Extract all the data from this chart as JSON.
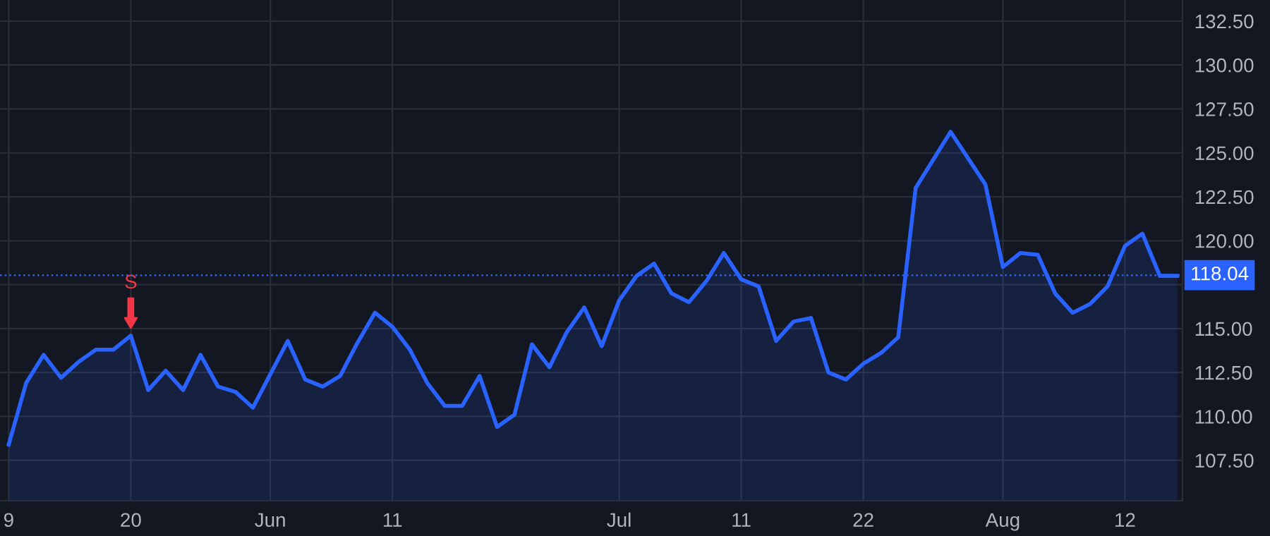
{
  "chart_data": {
    "type": "area",
    "categories": [
      "9",
      null,
      null,
      null,
      null,
      null,
      null,
      "20",
      null,
      null,
      null,
      null,
      null,
      null,
      null,
      "Jun",
      null,
      null,
      null,
      null,
      null,
      null,
      "11",
      null,
      null,
      null,
      null,
      null,
      null,
      null,
      null,
      null,
      null,
      null,
      null,
      "Jul",
      null,
      null,
      null,
      null,
      null,
      null,
      "11",
      null,
      null,
      null,
      null,
      null,
      null,
      "22",
      null,
      null,
      null,
      null,
      null,
      null,
      null,
      "Aug",
      null,
      null,
      null,
      null,
      null,
      null,
      "12",
      null,
      null,
      null
    ],
    "series": [
      {
        "color": "#2962ff",
        "values": [
          108.4,
          111.9,
          113.5,
          112.2,
          113.1,
          113.8,
          113.8,
          114.6,
          111.5,
          112.6,
          111.5,
          113.5,
          111.7,
          111.4,
          110.5,
          112.4,
          114.3,
          112.1,
          111.7,
          112.3,
          114.2,
          115.9,
          115.1,
          113.8,
          111.9,
          110.6,
          110.6,
          112.3,
          109.4,
          110.1,
          114.1,
          112.8,
          114.8,
          116.2,
          114.0,
          116.6,
          118.0,
          118.7,
          117.0,
          116.5,
          117.7,
          119.3,
          117.8,
          117.4,
          114.3,
          115.4,
          115.6,
          112.5,
          112.1,
          113.0,
          113.6,
          114.5,
          123.0,
          124.6,
          126.2,
          124.7,
          123.2,
          118.5,
          119.3,
          119.2,
          117.0,
          115.9,
          116.4,
          117.4,
          119.7,
          120.4,
          118.0,
          118.0
        ]
      }
    ],
    "ylim": [
      105.2,
      133.7
    ],
    "yticks": [
      {
        "value": 107.5,
        "label": "107.50"
      },
      {
        "value": 110,
        "label": "110.00"
      },
      {
        "value": 112.5,
        "label": "112.50"
      },
      {
        "value": 115,
        "label": "115.00"
      },
      {
        "value": 117.5,
        "label": null
      },
      {
        "value": 120,
        "label": "120.00"
      },
      {
        "value": 122.5,
        "label": "122.50"
      },
      {
        "value": 125,
        "label": "125.00"
      },
      {
        "value": 127.5,
        "label": "127.50"
      },
      {
        "value": 130,
        "label": "130.00"
      },
      {
        "value": 132.5,
        "label": "132.50"
      }
    ],
    "ref_lines": [
      {
        "axis": "y",
        "value": 118.04,
        "label": "118.04",
        "color": "#2962ff",
        "line_style": "dotted"
      }
    ],
    "annotations": [
      {
        "text": "S",
        "x": "20",
        "y": 114.6
      }
    ],
    "grid": true
  }
}
